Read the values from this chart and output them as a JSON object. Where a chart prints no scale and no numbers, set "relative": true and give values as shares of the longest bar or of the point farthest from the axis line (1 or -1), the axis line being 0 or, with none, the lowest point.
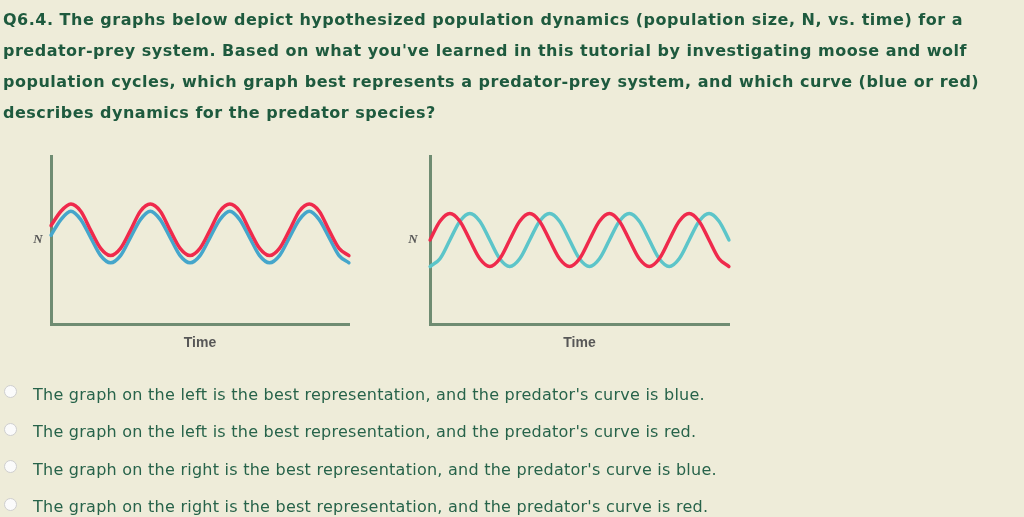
{
  "chart_data": [
    {
      "type": "line",
      "title": "Q6.4. The graphs below depict hypothesized population dynamics (population size, N, vs. time) for a predator-prey system. Based on what you've learned in this tutorial by investigating moose and wolf population cycles, which graph best represents a predator-prey system, and which curve (blue or red) describes dynamics for the predator species?",
      "xlabel": "Time",
      "ylabel": "N",
      "categories": [
        null,
        null,
        null,
        null,
        null,
        null,
        null,
        null,
        null,
        null,
        null,
        null,
        null,
        null,
        null,
        null,
        null,
        null,
        null,
        null,
        null,
        null,
        null,
        null,
        null,
        null,
        null,
        null,
        null,
        null,
        null
      ],
      "series": [
        {
          "color": "#ef2a4c",
          "values": [
            0.82,
            0.94,
            1.0,
            0.94,
            0.78,
            0.63,
            0.57,
            0.63,
            0.78,
            0.94,
            1.0,
            0.94,
            0.78,
            0.63,
            0.57,
            0.63,
            0.78,
            0.94,
            1.0,
            0.94,
            0.78,
            0.63,
            0.57,
            0.63,
            0.78,
            0.94,
            1.0,
            0.94,
            0.78,
            0.63,
            0.57
          ]
        },
        {
          "color": "#45a6cb",
          "values": [
            0.74,
            0.87,
            0.94,
            0.87,
            0.72,
            0.57,
            0.51,
            0.57,
            0.72,
            0.87,
            0.94,
            0.87,
            0.72,
            0.57,
            0.51,
            0.57,
            0.72,
            0.87,
            0.94,
            0.87,
            0.72,
            0.57,
            0.51,
            0.57,
            0.72,
            0.87,
            0.94,
            0.87,
            0.72,
            0.57,
            0.51
          ]
        }
      ],
      "relative": true,
      "marker": "none",
      "tick_labels": false
    },
    {
      "type": "line",
      "xlabel": "Time",
      "ylabel": "N",
      "categories": [
        null,
        null,
        null,
        null,
        null,
        null,
        null,
        null,
        null,
        null,
        null,
        null,
        null,
        null,
        null,
        null,
        null,
        null,
        null,
        null,
        null,
        null,
        null,
        null,
        null,
        null,
        null,
        null,
        null,
        null,
        null
      ],
      "series": [
        {
          "color": "#ef2a4c",
          "values": [
            0.76,
            0.93,
            1.0,
            0.93,
            0.76,
            0.59,
            0.52,
            0.59,
            0.76,
            0.93,
            1.0,
            0.93,
            0.76,
            0.59,
            0.52,
            0.59,
            0.76,
            0.93,
            1.0,
            0.93,
            0.76,
            0.59,
            0.52,
            0.59,
            0.76,
            0.93,
            1.0,
            0.93,
            0.76,
            0.59,
            0.52
          ]
        },
        {
          "color": "#5cc5c9",
          "values": [
            0.52,
            0.59,
            0.76,
            0.93,
            1.0,
            0.93,
            0.76,
            0.59,
            0.52,
            0.59,
            0.76,
            0.93,
            1.0,
            0.93,
            0.76,
            0.59,
            0.52,
            0.59,
            0.76,
            0.93,
            1.0,
            0.93,
            0.76,
            0.59,
            0.52,
            0.59,
            0.76,
            0.93,
            1.0,
            0.93,
            0.76
          ]
        }
      ],
      "relative": true,
      "marker": "none",
      "tick_labels": false,
      "annotations": [
        "The graph on the left is the best representation, and the predator's curve is blue.",
        "The graph on the left is the best representation, and the predator's curve is red.",
        "The graph on the right is the best representation, and the predator's curve is blue.",
        "The graph on the right is the best representation, and the predator's curve is red."
      ]
    }
  ]
}
